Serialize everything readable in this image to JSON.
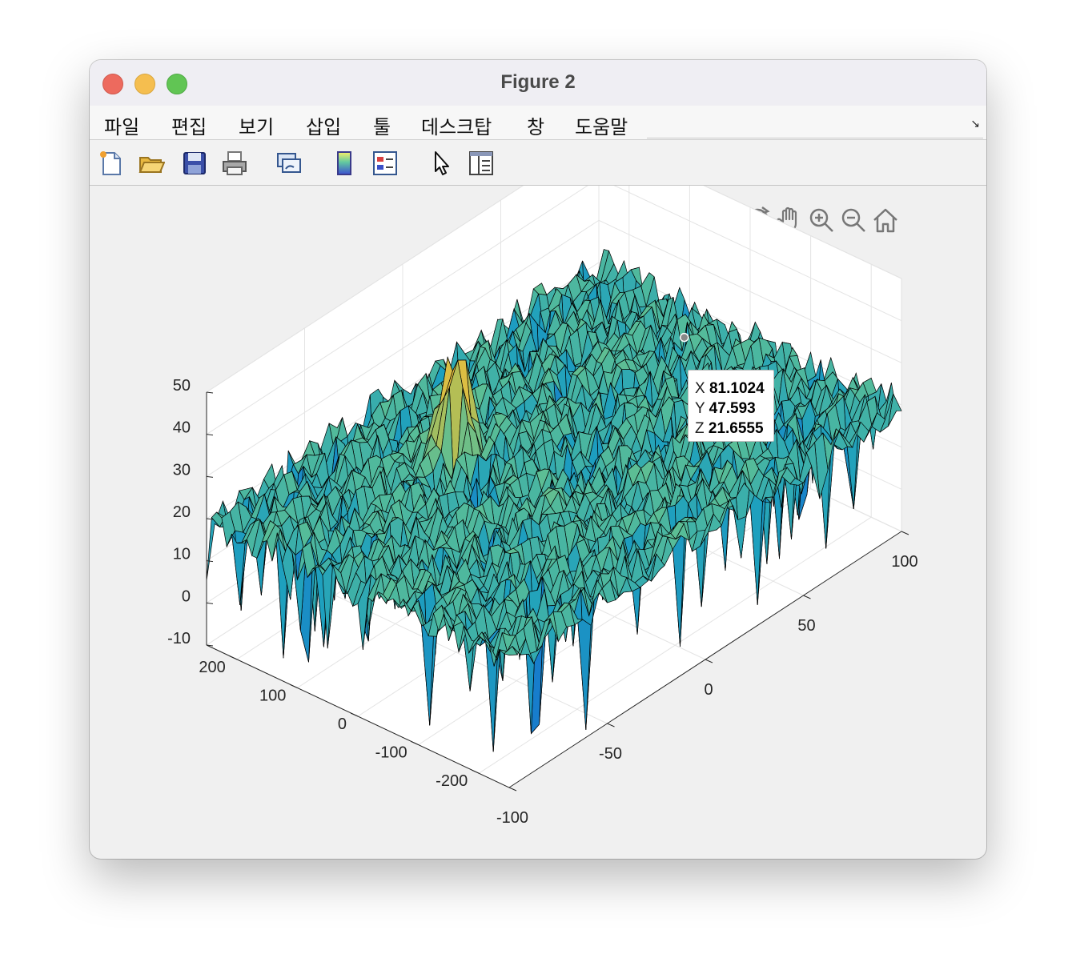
{
  "window": {
    "title": "Figure 2"
  },
  "menu": {
    "items": [
      "파일",
      "편집",
      "보기",
      "삽입",
      "툴",
      "데스크탑",
      "창",
      "도움말"
    ]
  },
  "toolbar": {
    "icons": [
      "new-figure-icon",
      "open-file-icon",
      "save-icon",
      "print-icon",
      "link-plot-icon",
      "colorbar-icon",
      "legend-icon",
      "edit-pointer-icon",
      "property-inspector-icon"
    ]
  },
  "axes_toolbar": {
    "icons": [
      "export-icon",
      "brush-icon",
      "data-tips-icon",
      "rotate-3d-icon",
      "pan-icon",
      "zoom-in-icon",
      "zoom-out-icon",
      "home-icon"
    ]
  },
  "datatip": {
    "x_label": "X",
    "x_value": "81.1024",
    "y_label": "Y",
    "y_value": "47.593",
    "z_label": "Z",
    "z_value": "21.6555"
  },
  "chart_data": {
    "type": "surface",
    "x_ticks": [
      "-100",
      "-50",
      "0",
      "50",
      "100"
    ],
    "y_ticks": [
      "-200",
      "-100",
      "0",
      "100",
      "200"
    ],
    "z_ticks": [
      "-10",
      "0",
      "10",
      "20",
      "30",
      "40",
      "50"
    ],
    "xlim": [
      -100,
      100
    ],
    "ylim": [
      -250,
      250
    ],
    "zlim": [
      -10,
      50
    ],
    "grid": true,
    "colormap": "parula",
    "noise_floor_mean": 20,
    "noise_floor_range": [
      -10,
      27
    ],
    "peak": {
      "x": -20,
      "y": 100,
      "z": 45
    },
    "datatip_point": {
      "x": 81.1024,
      "y": 47.593,
      "z": 21.6555
    }
  }
}
